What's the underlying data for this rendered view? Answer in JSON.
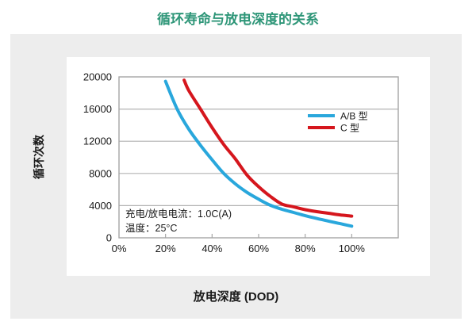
{
  "page": {
    "title": "循环寿命与放电深度的关系"
  },
  "colors": {
    "title": "#2E9678",
    "series_ab": "#29A7DC",
    "series_c": "#D5161D",
    "panel_bg": "#EDEDED",
    "plot_bg": "#FFFFFF",
    "grid": "#B3B3B3",
    "axis_border": "#A6A6A6",
    "text": "#1A1A1A"
  },
  "chart_data": {
    "type": "line",
    "title": "循环寿命与放电深度的关系",
    "xlabel": "放电深度 (DOD)",
    "ylabel": "循环次数",
    "xlim": [
      0,
      120
    ],
    "ylim": [
      0,
      20000
    ],
    "x_ticks": [
      0,
      20,
      40,
      60,
      80,
      100
    ],
    "x_tick_labels": [
      "0%",
      "20%",
      "40%",
      "60%",
      "80%",
      "100%"
    ],
    "y_ticks": [
      0,
      4000,
      8000,
      12000,
      16000,
      20000
    ],
    "y_tick_labels": [
      "0",
      "4000",
      "8000",
      "12000",
      "16000",
      "20000"
    ],
    "grid": "horizontal",
    "legend_position": "upper-right-inside",
    "annotation": [
      "充电/放电电流：1.0C(A)",
      "温度：25°C"
    ],
    "series": [
      {
        "name": "A/B 型",
        "color": "#29A7DC",
        "x": [
          20,
          25,
          30,
          35,
          40,
          45,
          50,
          55,
          60,
          65,
          70,
          75,
          80,
          85,
          90,
          95,
          100
        ],
        "y": [
          19450,
          16000,
          13500,
          11500,
          9700,
          8000,
          6700,
          5650,
          4800,
          4050,
          3550,
          3150,
          2750,
          2400,
          2080,
          1760,
          1450
        ]
      },
      {
        "name": "C 型",
        "color": "#D5161D",
        "x": [
          28,
          30,
          35,
          40,
          45,
          50,
          55,
          60,
          65,
          70,
          75,
          80,
          85,
          90,
          95,
          100
        ],
        "y": [
          19600,
          18300,
          16000,
          13700,
          11600,
          9800,
          7800,
          6350,
          5150,
          4200,
          3850,
          3500,
          3250,
          3050,
          2850,
          2700
        ]
      }
    ]
  }
}
